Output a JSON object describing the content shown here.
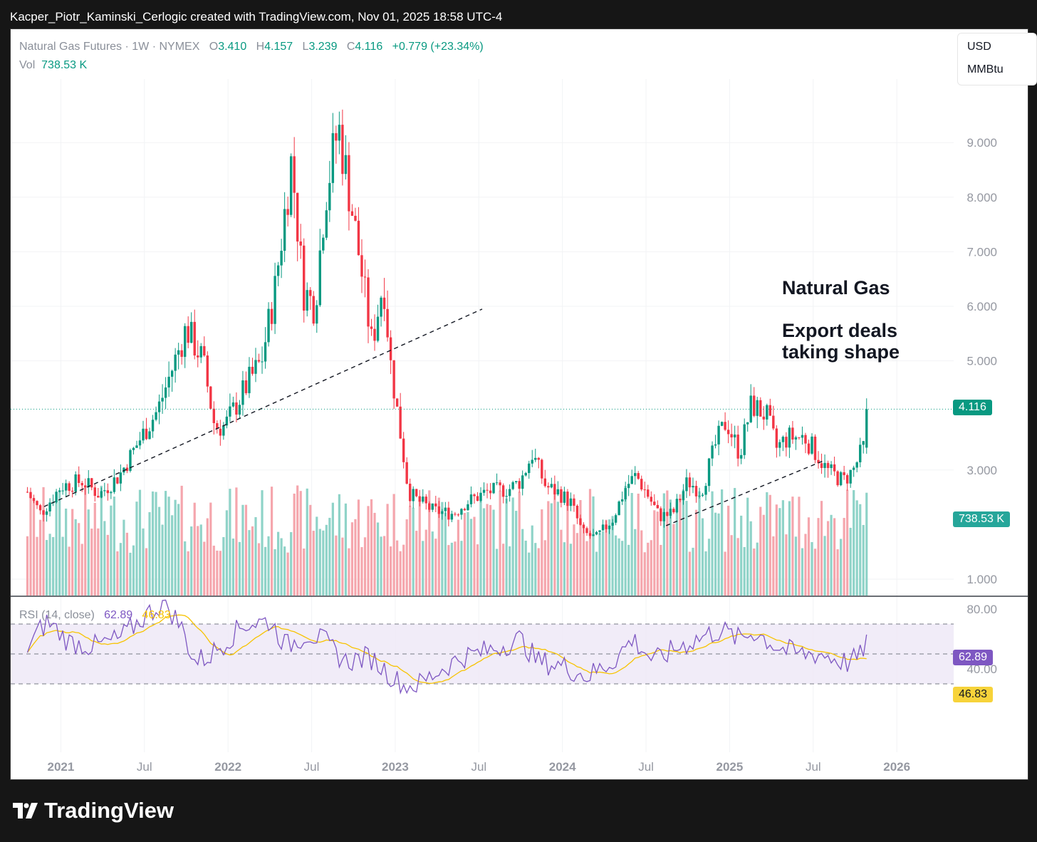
{
  "header": {
    "caption": "Kacper_Piotr_Kaminski_Cerlogic created with TradingView.com, Nov 01, 2025 18:58 UTC-4"
  },
  "legend": {
    "symbol": "Natural Gas Futures · 1W · NYMEX",
    "o_label": "O",
    "o_value": "3.410",
    "h_label": "H",
    "h_value": "4.157",
    "l_label": "L",
    "l_value": "3.239",
    "c_label": "C",
    "c_value": "4.116",
    "change": "+0.779 (+23.34%)",
    "vol_label": "Vol",
    "vol_value": "738.53 K"
  },
  "units": {
    "currency": "USD",
    "unit": "MMBtu"
  },
  "annotation": {
    "line1": "Natural Gas",
    "line2": "Export deals",
    "line3": "taking shape"
  },
  "price_tag": "4.116",
  "volume_tag": "738.53 K",
  "rsi": {
    "label": "RSI (14, close)",
    "value": "62.89",
    "ma_value": "46.83"
  },
  "brand": {
    "name": "TradingView"
  },
  "colors": {
    "up": "#089981",
    "down": "#f23645",
    "rsi": "#7e57c2",
    "rsi_ma": "#f7c300",
    "band": "#ede7f6"
  },
  "chart_data": {
    "type": "candlestick",
    "interval": "1W",
    "price_axis_ticks": [
      "9.000",
      "8.000",
      "7.000",
      "6.000",
      "5.000",
      "3.000",
      "1.000"
    ],
    "rsi_axis_ticks": [
      "80.00",
      "40.00"
    ],
    "time_axis_labels": [
      "2021",
      "Jul",
      "2022",
      "Jul",
      "2023",
      "Jul",
      "2024",
      "Jul",
      "2025",
      "Jul",
      "2026"
    ],
    "price_key_points": [
      {
        "x": 2020.8,
        "y": 2.6
      },
      {
        "x": 2020.88,
        "y": 2.2
      },
      {
        "x": 2021.0,
        "y": 2.7
      },
      {
        "x": 2021.13,
        "y": 2.8
      },
      {
        "x": 2021.23,
        "y": 2.55
      },
      {
        "x": 2021.35,
        "y": 2.9
      },
      {
        "x": 2021.48,
        "y": 3.6
      },
      {
        "x": 2021.58,
        "y": 4.1
      },
      {
        "x": 2021.75,
        "y": 5.6
      },
      {
        "x": 2021.8,
        "y": 5.3
      },
      {
        "x": 2021.85,
        "y": 5.0
      },
      {
        "x": 2021.92,
        "y": 3.8
      },
      {
        "x": 2021.98,
        "y": 3.8
      },
      {
        "x": 2022.05,
        "y": 4.2
      },
      {
        "x": 2022.12,
        "y": 4.6
      },
      {
        "x": 2022.2,
        "y": 5.0
      },
      {
        "x": 2022.28,
        "y": 6.3
      },
      {
        "x": 2022.38,
        "y": 8.7
      },
      {
        "x": 2022.45,
        "y": 6.3
      },
      {
        "x": 2022.52,
        "y": 6.0
      },
      {
        "x": 2022.58,
        "y": 8.0
      },
      {
        "x": 2022.66,
        "y": 9.3
      },
      {
        "x": 2022.73,
        "y": 8.0
      },
      {
        "x": 2022.8,
        "y": 6.6
      },
      {
        "x": 2022.86,
        "y": 5.3
      },
      {
        "x": 2022.93,
        "y": 6.5
      },
      {
        "x": 2022.97,
        "y": 5.0
      },
      {
        "x": 2023.02,
        "y": 3.9
      },
      {
        "x": 2023.08,
        "y": 2.6
      },
      {
        "x": 2023.13,
        "y": 2.45
      },
      {
        "x": 2023.23,
        "y": 2.25
      },
      {
        "x": 2023.35,
        "y": 2.2
      },
      {
        "x": 2023.42,
        "y": 2.4
      },
      {
        "x": 2023.55,
        "y": 2.6
      },
      {
        "x": 2023.68,
        "y": 2.65
      },
      {
        "x": 2023.75,
        "y": 2.8
      },
      {
        "x": 2023.82,
        "y": 3.3
      },
      {
        "x": 2023.9,
        "y": 2.7
      },
      {
        "x": 2023.97,
        "y": 2.6
      },
      {
        "x": 2024.05,
        "y": 2.4
      },
      {
        "x": 2024.12,
        "y": 1.85
      },
      {
        "x": 2024.2,
        "y": 1.75
      },
      {
        "x": 2024.3,
        "y": 2.1
      },
      {
        "x": 2024.38,
        "y": 2.7
      },
      {
        "x": 2024.44,
        "y": 2.9
      },
      {
        "x": 2024.5,
        "y": 2.6
      },
      {
        "x": 2024.58,
        "y": 2.15
      },
      {
        "x": 2024.66,
        "y": 2.2
      },
      {
        "x": 2024.75,
        "y": 2.8
      },
      {
        "x": 2024.83,
        "y": 2.6
      },
      {
        "x": 2024.92,
        "y": 3.5
      },
      {
        "x": 2024.98,
        "y": 3.9
      },
      {
        "x": 2025.06,
        "y": 3.3
      },
      {
        "x": 2025.13,
        "y": 4.2
      },
      {
        "x": 2025.22,
        "y": 4.0
      },
      {
        "x": 2025.28,
        "y": 3.4
      },
      {
        "x": 2025.35,
        "y": 3.6
      },
      {
        "x": 2025.45,
        "y": 3.6
      },
      {
        "x": 2025.52,
        "y": 3.3
      },
      {
        "x": 2025.58,
        "y": 3.0
      },
      {
        "x": 2025.68,
        "y": 2.8
      },
      {
        "x": 2025.74,
        "y": 3.0
      },
      {
        "x": 2025.8,
        "y": 3.41
      },
      {
        "x": 2025.83,
        "y": 4.116
      }
    ],
    "rsi_key_points": [
      {
        "x": 2020.8,
        "y": 55
      },
      {
        "x": 2020.92,
        "y": 72
      },
      {
        "x": 2021.05,
        "y": 58
      },
      {
        "x": 2021.2,
        "y": 55
      },
      {
        "x": 2021.35,
        "y": 60
      },
      {
        "x": 2021.5,
        "y": 75
      },
      {
        "x": 2021.62,
        "y": 85
      },
      {
        "x": 2021.72,
        "y": 68
      },
      {
        "x": 2021.8,
        "y": 45
      },
      {
        "x": 2021.88,
        "y": 48
      },
      {
        "x": 2022.0,
        "y": 60
      },
      {
        "x": 2022.1,
        "y": 70
      },
      {
        "x": 2022.25,
        "y": 72
      },
      {
        "x": 2022.35,
        "y": 55
      },
      {
        "x": 2022.48,
        "y": 64
      },
      {
        "x": 2022.58,
        "y": 58
      },
      {
        "x": 2022.7,
        "y": 45
      },
      {
        "x": 2022.85,
        "y": 48
      },
      {
        "x": 2022.95,
        "y": 38
      },
      {
        "x": 2023.05,
        "y": 28
      },
      {
        "x": 2023.15,
        "y": 30
      },
      {
        "x": 2023.25,
        "y": 38
      },
      {
        "x": 2023.4,
        "y": 48
      },
      {
        "x": 2023.55,
        "y": 52
      },
      {
        "x": 2023.75,
        "y": 60
      },
      {
        "x": 2023.85,
        "y": 45
      },
      {
        "x": 2024.0,
        "y": 42
      },
      {
        "x": 2024.15,
        "y": 35
      },
      {
        "x": 2024.3,
        "y": 45
      },
      {
        "x": 2024.42,
        "y": 60
      },
      {
        "x": 2024.55,
        "y": 45
      },
      {
        "x": 2024.7,
        "y": 55
      },
      {
        "x": 2024.85,
        "y": 62
      },
      {
        "x": 2024.95,
        "y": 66
      },
      {
        "x": 2025.05,
        "y": 60
      },
      {
        "x": 2025.15,
        "y": 65
      },
      {
        "x": 2025.28,
        "y": 55
      },
      {
        "x": 2025.4,
        "y": 50
      },
      {
        "x": 2025.55,
        "y": 50
      },
      {
        "x": 2025.7,
        "y": 44
      },
      {
        "x": 2025.78,
        "y": 48
      },
      {
        "x": 2025.83,
        "y": 62.89
      }
    ],
    "rsi_bands": [
      70,
      50,
      30
    ]
  }
}
